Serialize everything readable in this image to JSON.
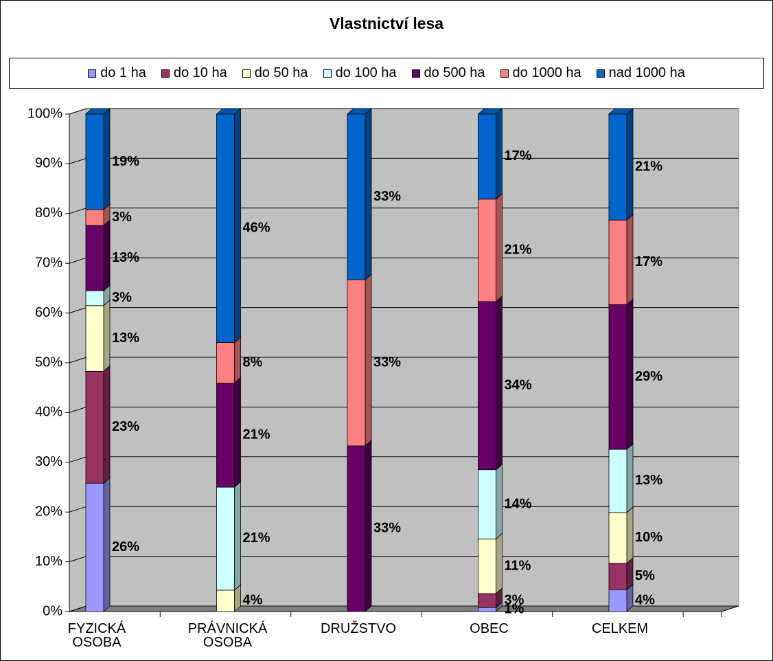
{
  "chart_data": {
    "type": "bar",
    "stacked": true,
    "title": "Vlastnictví lesa",
    "categories": [
      "FYZICKÁ OSOBA",
      "PRÁVNICKÁ OSOBA",
      "DRUŽSTVO",
      "OBEC",
      "CELKEM"
    ],
    "series": [
      {
        "name": "do 1 ha",
        "color": "#9999ff",
        "values": [
          25.8,
          null,
          null,
          0.8,
          4.4
        ],
        "value_labels": [
          "26%",
          null,
          null,
          "1%",
          "4%"
        ]
      },
      {
        "name": "do 10 ha",
        "color": "#993366",
        "values": [
          22.5,
          null,
          null,
          2.8,
          5.3
        ],
        "value_labels": [
          "23%",
          null,
          null,
          "3%",
          "5%"
        ]
      },
      {
        "name": "do 50 ha",
        "color": "#ffffcc",
        "values": [
          13.2,
          4.3,
          null,
          11.0,
          10.2
        ],
        "value_labels": [
          "13%",
          "4%",
          null,
          "11%",
          "10%"
        ]
      },
      {
        "name": "do 100 ha",
        "color": "#ccffff",
        "values": [
          3.0,
          20.7,
          null,
          13.9,
          12.7
        ],
        "value_labels": [
          "3%",
          "21%",
          null,
          "14%",
          "13%"
        ]
      },
      {
        "name": "do 500 ha",
        "color": "#660066",
        "values": [
          13.1,
          20.9,
          33.3,
          33.8,
          29.1
        ],
        "value_labels": [
          "13%",
          "21%",
          "33%",
          "34%",
          "29%"
        ]
      },
      {
        "name": "do 1000 ha",
        "color": "#ff8080",
        "values": [
          3.2,
          8.2,
          33.4,
          20.6,
          17.0
        ],
        "value_labels": [
          "3%",
          "8%",
          "33%",
          "21%",
          "17%"
        ]
      },
      {
        "name": "nad 1000 ha",
        "color": "#0066cc",
        "values": [
          19.2,
          45.9,
          33.3,
          17.1,
          21.3
        ],
        "value_labels": [
          "19%",
          "46%",
          "33%",
          "17%",
          "21%"
        ]
      }
    ],
    "ylim": [
      0,
      100
    ],
    "yticks": [
      {
        "value": 0,
        "label": "0%"
      },
      {
        "value": 10,
        "label": "10%"
      },
      {
        "value": 20,
        "label": "20%"
      },
      {
        "value": 30,
        "label": "30%"
      },
      {
        "value": 40,
        "label": "40%"
      },
      {
        "value": 50,
        "label": "50%"
      },
      {
        "value": 60,
        "label": "60%"
      },
      {
        "value": 70,
        "label": "70%"
      },
      {
        "value": 80,
        "label": "80%"
      },
      {
        "value": 90,
        "label": "90%"
      },
      {
        "value": 100,
        "label": "100%"
      }
    ],
    "grid": true,
    "legend": "top"
  }
}
